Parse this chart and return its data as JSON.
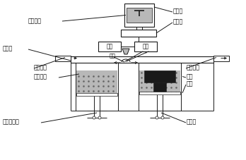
{
  "line_color": "#1a1a1a",
  "fill_light": "#b8b8b8",
  "fill_dark": "#1a1a1a",
  "fill_white": "#ffffff",
  "figsize": [
    3.48,
    2.27
  ],
  "dpi": 100,
  "labels": {
    "computer": "计算机",
    "3d_model": "三维造型",
    "laser_beam": "激光束",
    "laser": "激光",
    "mirror": "振镜",
    "scraper": "刮板",
    "work_box": "工作箱",
    "gas_in": "保护气进",
    "gas_out": "保护气出",
    "powder": "待用粉末",
    "part": "制件",
    "substrate": "基板",
    "powder_lift": "送粉升降器",
    "lift": "升降器"
  }
}
